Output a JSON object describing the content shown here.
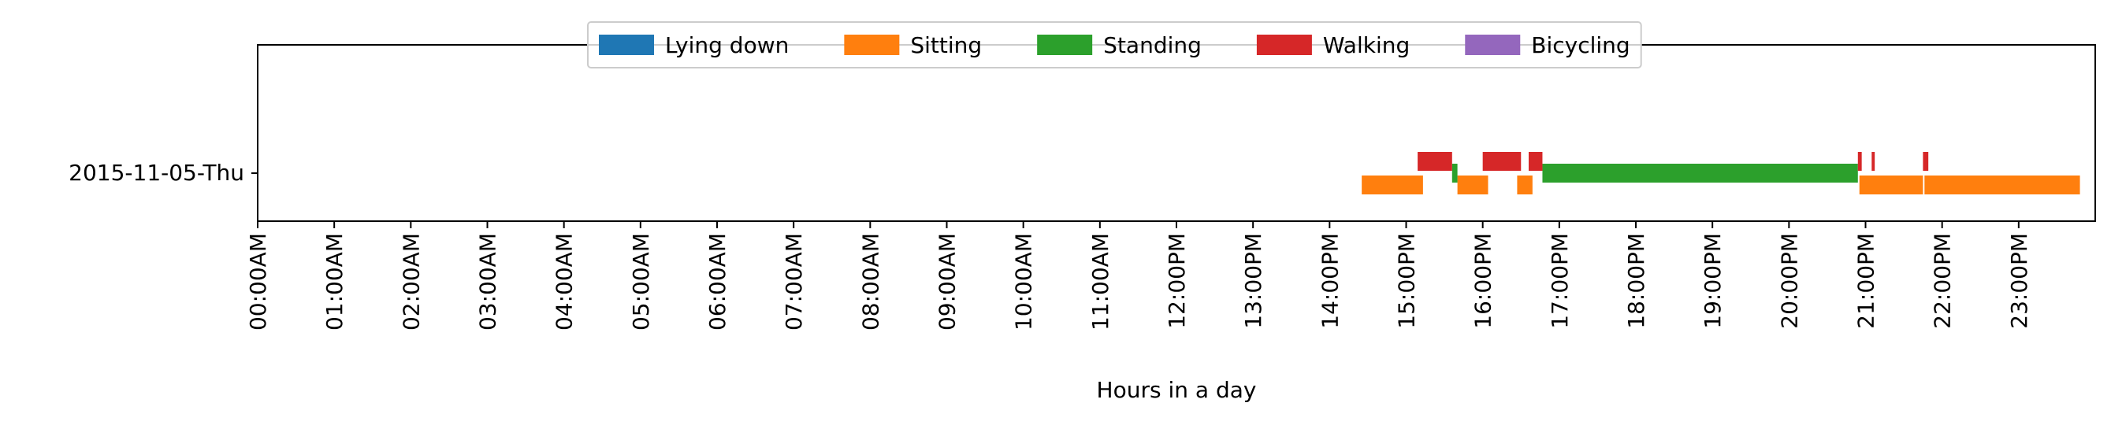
{
  "chart_data": {
    "type": "timeline",
    "xlabel": "Hours in a day",
    "xlim": [
      0,
      24
    ],
    "x_tick_labels": [
      "00:00AM",
      "01:00AM",
      "02:00AM",
      "03:00AM",
      "04:00AM",
      "05:00AM",
      "06:00AM",
      "07:00AM",
      "08:00AM",
      "09:00AM",
      "10:00AM",
      "11:00AM",
      "12:00PM",
      "13:00PM",
      "14:00PM",
      "15:00PM",
      "16:00PM",
      "17:00PM",
      "18:00PM",
      "19:00PM",
      "20:00PM",
      "21:00PM",
      "22:00PM",
      "23:00PM"
    ],
    "rows": [
      "2015-11-05-Thu"
    ],
    "legend_placement": "top-center",
    "grid": false,
    "series": [
      {
        "name": "Lying down",
        "color": "#1f77b4",
        "lane": -2,
        "segments": []
      },
      {
        "name": "Sitting",
        "color": "#ff7f0e",
        "lane": -1,
        "segments": [
          [
            14.42,
            15.22
          ],
          [
            15.67,
            16.07
          ],
          [
            16.45,
            16.65
          ],
          [
            20.92,
            21.75
          ],
          [
            21.77,
            23.8
          ]
        ]
      },
      {
        "name": "Standing",
        "color": "#2ca02c",
        "lane": 0,
        "segments": [
          [
            15.6,
            15.67
          ],
          [
            16.78,
            20.9
          ]
        ]
      },
      {
        "name": "Walking",
        "color": "#d62728",
        "lane": 1,
        "segments": [
          [
            15.15,
            15.6
          ],
          [
            16.0,
            16.5
          ],
          [
            16.6,
            16.78
          ],
          [
            20.9,
            20.95
          ],
          [
            21.08,
            21.12
          ],
          [
            21.75,
            21.82
          ]
        ]
      },
      {
        "name": "Bicycling",
        "color": "#9467bd",
        "lane": 2,
        "segments": []
      }
    ]
  }
}
